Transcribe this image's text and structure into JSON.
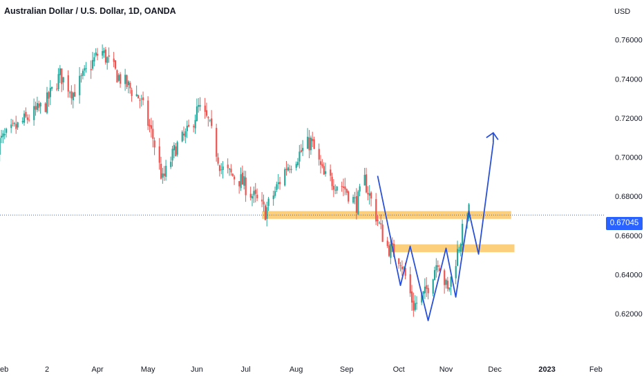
{
  "chart_data": {
    "type": "candlestick",
    "title": "Australian Dollar / U.S. Dollar, 1D, OANDA",
    "currency": "USD",
    "ylim": [
      0.6045,
      0.7705
    ],
    "y_ticks": [
      "0.76000",
      "0.74000",
      "0.72000",
      "0.70000",
      "0.68000",
      "0.66000",
      "0.64000",
      "0.62000"
    ],
    "y_tick_values": [
      0.76,
      0.74,
      0.72,
      0.7,
      0.68,
      0.66,
      0.64,
      0.62
    ],
    "x_labels": [
      "eb",
      "2",
      "Apr",
      "May",
      "Jun",
      "Jul",
      "Aug",
      "Sep",
      "Oct",
      "Nov",
      "Dec",
      "2023",
      "Feb"
    ],
    "x_label_dates": [
      "2022-02-01",
      "2022-03-01",
      "2022-04-01",
      "2022-05-02",
      "2022-06-01",
      "2022-07-01",
      "2022-08-01",
      "2022-09-01",
      "2022-10-03",
      "2022-11-01",
      "2022-12-01",
      "2023-01-02",
      "2023-02-01"
    ],
    "last_price": "0.67045",
    "last_price_value": 0.67045,
    "colors": {
      "up": "#26a69a",
      "down": "#ef5350",
      "pattern": "#2950d6",
      "zone": "#fbbf52",
      "accent": "#2962ff"
    },
    "price_path": [
      [
        "2022-01-28",
        0.705
      ],
      [
        "2022-02-15",
        0.718
      ],
      [
        "2022-03-01",
        0.727
      ],
      [
        "2022-03-10",
        0.742
      ],
      [
        "2022-03-18",
        0.733
      ],
      [
        "2022-04-04",
        0.755
      ],
      [
        "2022-04-14",
        0.742
      ],
      [
        "2022-04-28",
        0.73
      ],
      [
        "2022-05-06",
        0.71
      ],
      [
        "2022-05-12",
        0.688
      ],
      [
        "2022-05-20",
        0.705
      ],
      [
        "2022-05-27",
        0.712
      ],
      [
        "2022-06-03",
        0.725
      ],
      [
        "2022-06-09",
        0.718
      ],
      [
        "2022-06-17",
        0.694
      ],
      [
        "2022-06-29",
        0.688
      ],
      [
        "2022-07-14",
        0.672
      ],
      [
        "2022-07-27",
        0.695
      ],
      [
        "2022-08-11",
        0.708
      ],
      [
        "2022-08-19",
        0.69
      ],
      [
        "2022-08-31",
        0.685
      ],
      [
        "2022-09-08",
        0.676
      ],
      [
        "2022-09-13",
        0.688
      ],
      [
        "2022-09-26",
        0.655
      ],
      [
        "2022-10-05",
        0.648
      ],
      [
        "2022-10-13",
        0.624
      ],
      [
        "2022-10-20",
        0.63
      ],
      [
        "2022-10-28",
        0.648
      ],
      [
        "2022-11-03",
        0.631
      ],
      [
        "2022-11-15",
        0.672
      ]
    ],
    "pattern_path": [
      [
        "2022-09-20",
        0.6905
      ],
      [
        "2022-10-04",
        0.6345
      ],
      [
        "2022-10-10",
        0.6545
      ],
      [
        "2022-10-21",
        0.6165
      ],
      [
        "2022-11-01",
        0.6535
      ],
      [
        "2022-11-07",
        0.6285
      ],
      [
        "2022-11-15",
        0.6725
      ],
      [
        "2022-11-21",
        0.6505
      ],
      [
        "2022-11-30",
        0.7075
      ]
    ],
    "arrow_head_at": [
      "2022-11-30",
      0.7125
    ],
    "zones": [
      {
        "from": "2022-07-11",
        "to": "2022-12-11",
        "low": 0.6685,
        "high": 0.6725
      },
      {
        "from": "2022-09-27",
        "to": "2022-12-13",
        "low": 0.6515,
        "high": 0.6555
      }
    ]
  }
}
